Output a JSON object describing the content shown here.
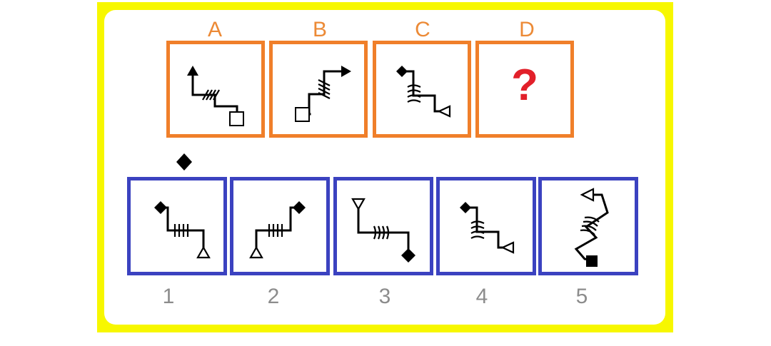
{
  "question": {
    "labels": [
      "A",
      "B",
      "C",
      "D"
    ],
    "unknown_mark": "?"
  },
  "answers": {
    "numbers": [
      "1",
      "2",
      "3",
      "4",
      "5"
    ]
  },
  "colors": {
    "frame": "#f7f700",
    "question_border": "#f07f2a",
    "answer_border": "#3b42c0",
    "label": "#ec8a36",
    "unknown_mark": "#e2202a",
    "number": "#8c8c8c"
  },
  "icons": {
    "stray_shape": "diamond-icon"
  }
}
